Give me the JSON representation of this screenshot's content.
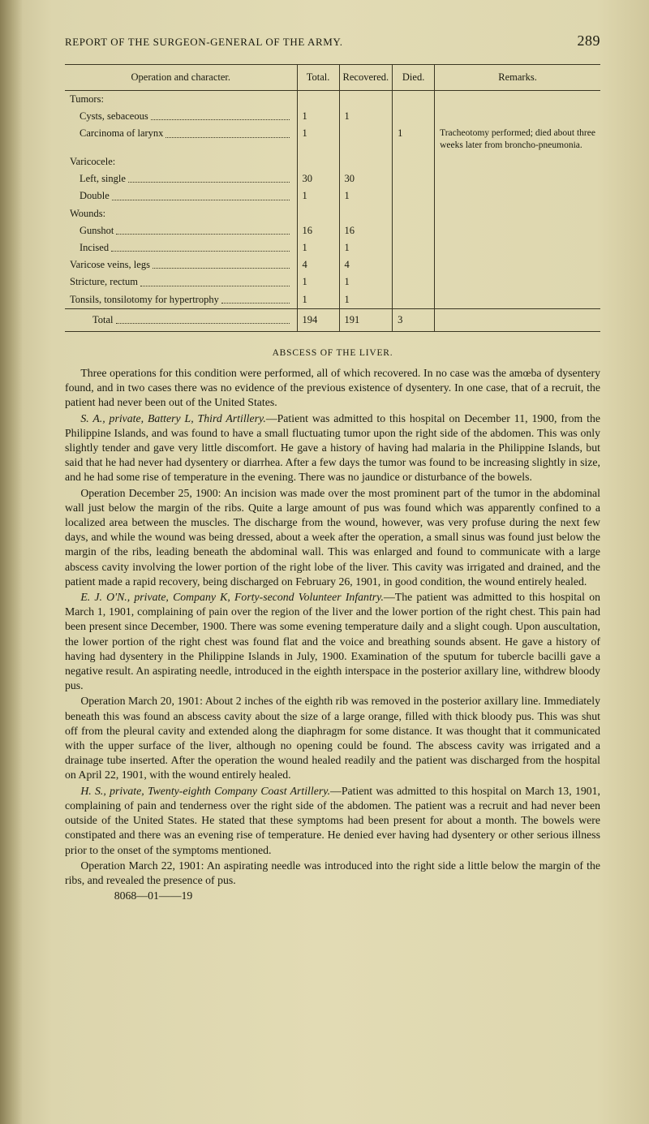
{
  "header": {
    "running_head": "REPORT OF THE SURGEON-GENERAL OF THE ARMY.",
    "page_number": "289"
  },
  "table": {
    "columns": [
      "Operation and character.",
      "Total.",
      "Recovered.",
      "Died.",
      "Remarks."
    ],
    "rows": [
      {
        "label": "Tumors:",
        "indent": 0,
        "total": "",
        "recov": "",
        "died": "",
        "remarks": ""
      },
      {
        "label": "Cysts, sebaceous",
        "indent": 1,
        "total": "1",
        "recov": "1",
        "died": "",
        "remarks": ""
      },
      {
        "label": "Carcinoma of larynx",
        "indent": 1,
        "total": "1",
        "recov": "",
        "died": "1",
        "remarks": "Tracheotomy performed; died about three weeks later from broncho-pneumonia."
      },
      {
        "label": "Varicocele:",
        "indent": 0,
        "total": "",
        "recov": "",
        "died": "",
        "remarks": ""
      },
      {
        "label": "Left, single",
        "indent": 1,
        "total": "30",
        "recov": "30",
        "died": "",
        "remarks": ""
      },
      {
        "label": "Double",
        "indent": 1,
        "total": "1",
        "recov": "1",
        "died": "",
        "remarks": ""
      },
      {
        "label": "Wounds:",
        "indent": 0,
        "total": "",
        "recov": "",
        "died": "",
        "remarks": ""
      },
      {
        "label": "Gunshot",
        "indent": 1,
        "total": "16",
        "recov": "16",
        "died": "",
        "remarks": ""
      },
      {
        "label": "Incised",
        "indent": 1,
        "total": "1",
        "recov": "1",
        "died": "",
        "remarks": ""
      },
      {
        "label": "Varicose veins, legs",
        "indent": 0,
        "total": "4",
        "recov": "4",
        "died": "",
        "remarks": ""
      },
      {
        "label": "Stricture, rectum",
        "indent": 0,
        "total": "1",
        "recov": "1",
        "died": "",
        "remarks": ""
      },
      {
        "label": "Tonsils, tonsilotomy for hypertrophy",
        "indent": 0,
        "total": "1",
        "recov": "1",
        "died": "",
        "remarks": ""
      }
    ],
    "totals": {
      "label": "Total",
      "total": "194",
      "recov": "191",
      "died": "3",
      "remarks": ""
    }
  },
  "section": {
    "title": "ABSCESS OF THE LIVER."
  },
  "paragraphs": {
    "p1": "Three operations for this condition were performed, all of which recovered. In no case was the amœba of dysentery found, and in two cases there was no evidence of the previous existence of dysentery. In one case, that of a recruit, the patient had never been out of the United States.",
    "p2_head": "S. A., private, Battery L, Third Artillery.",
    "p2": "—Patient was admitted to this hospital on December 11, 1900, from the Philippine Islands, and was found to have a small fluctuating tumor upon the right side of the abdomen. This was only slightly tender and gave very little discomfort. He gave a history of having had malaria in the Philippine Islands, but said that he had never had dysentery or diarrhea. After a few days the tumor was found to be increasing slightly in size, and he had some rise of temperature in the evening. There was no jaundice or disturbance of the bowels.",
    "p3": "Operation December 25, 1900: An incision was made over the most prominent part of the tumor in the abdominal wall just below the margin of the ribs. Quite a large amount of pus was found which was apparently confined to a localized area between the muscles. The discharge from the wound, however, was very profuse during the next few days, and while the wound was being dressed, about a week after the operation, a small sinus was found just below the margin of the ribs, leading beneath the abdominal wall. This was enlarged and found to communicate with a large abscess cavity involving the lower portion of the right lobe of the liver. This cavity was irrigated and drained, and the patient made a rapid recovery, being discharged on February 26, 1901, in good condition, the wound entirely healed.",
    "p4_head": "E. J. O'N., private, Company K, Forty-second Volunteer Infantry.",
    "p4": "—The patient was admitted to this hospital on March 1, 1901, complaining of pain over the region of the liver and the lower portion of the right chest. This pain had been present since December, 1900. There was some evening temperature daily and a slight cough. Upon auscultation, the lower portion of the right chest was found flat and the voice and breathing sounds absent. He gave a history of having had dysentery in the Philippine Islands in July, 1900. Examination of the sputum for tubercle bacilli gave a negative result. An aspirating needle, introduced in the eighth interspace in the posterior axillary line, withdrew bloody pus.",
    "p5": "Operation March 20, 1901: About 2 inches of the eighth rib was removed in the posterior axillary line. Immediately beneath this was found an abscess cavity about the size of a large orange, filled with thick bloody pus. This was shut off from the pleural cavity and extended along the diaphragm for some distance. It was thought that it communicated with the upper surface of the liver, although no opening could be found. The abscess cavity was irrigated and a drainage tube inserted. After the operation the wound healed readily and the patient was discharged from the hospital on April 22, 1901, with the wound entirely healed.",
    "p6_head": "H. S., private, Twenty-eighth Company Coast Artillery.",
    "p6": "—Patient was admitted to this hospital on March 13, 1901, complaining of pain and tenderness over the right side of the abdomen. The patient was a recruit and had never been outside of the United States. He stated that these symptoms had been present for about a month. The bowels were constipated and there was an evening rise of temperature. He denied ever having had dysentery or other serious illness prior to the onset of the symptoms mentioned.",
    "p7": "Operation March 22, 1901: An aspirating needle was introduced into the right side a little below the margin of the ribs, and revealed the presence of pus.",
    "sig": "8068—01——19"
  }
}
